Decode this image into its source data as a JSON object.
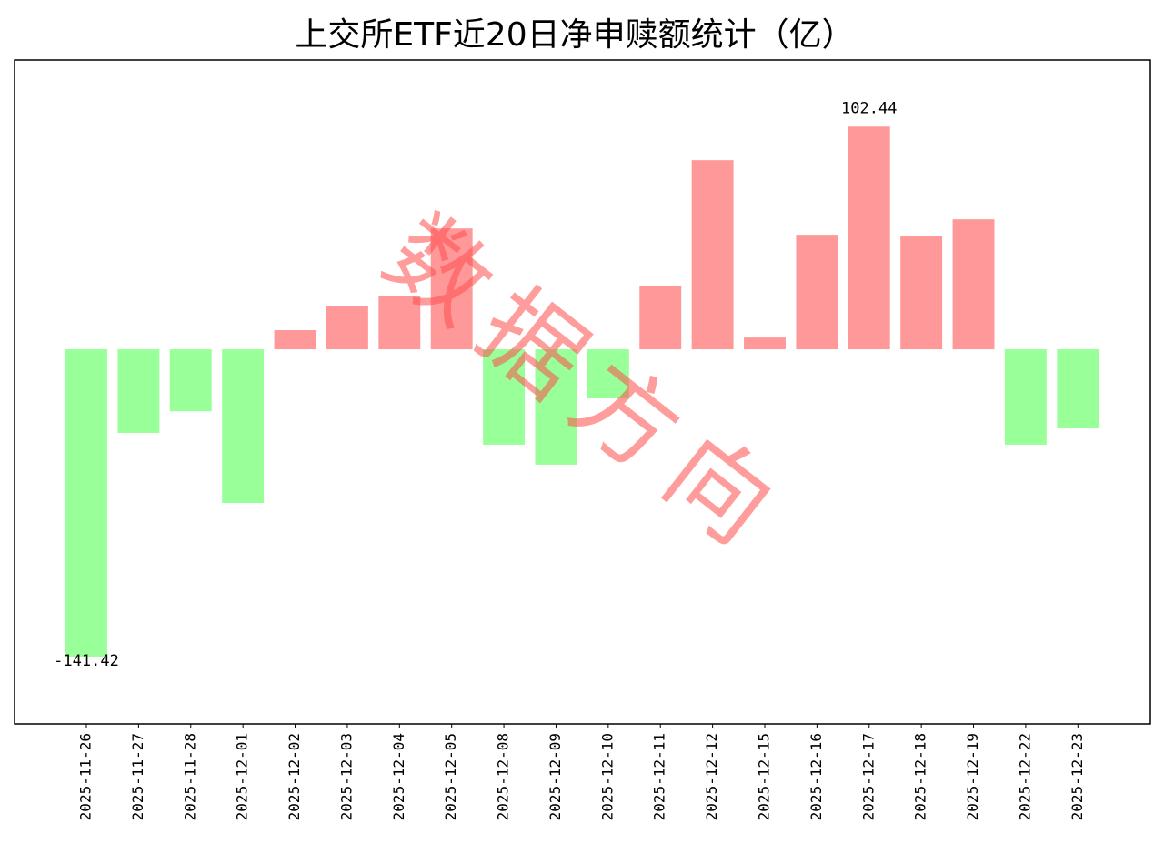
{
  "chart_data": {
    "type": "bar",
    "title": "上交所ETF近20日净申赎额统计（亿）",
    "watermark": "数据方向",
    "categories": [
      "2025-11-26",
      "2025-11-27",
      "2025-11-28",
      "2025-12-01",
      "2025-12-02",
      "2025-12-03",
      "2025-12-04",
      "2025-12-05",
      "2025-12-08",
      "2025-12-09",
      "2025-12-10",
      "2025-12-11",
      "2025-12-12",
      "2025-12-15",
      "2025-12-16",
      "2025-12-17",
      "2025-12-18",
      "2025-12-19",
      "2025-12-22",
      "2025-12-23"
    ],
    "values": [
      -141.42,
      -38.5,
      -28.5,
      -70.7,
      8.8,
      19.7,
      24.3,
      55.6,
      -43.9,
      -53.1,
      -22.6,
      29.3,
      87.0,
      5.4,
      52.7,
      102.44,
      51.9,
      59.8,
      -43.9,
      -36.4
    ],
    "positive_color": "#ff9999",
    "negative_color": "#99ff99",
    "ylim": [
      -172.4,
      133.1
    ]
  }
}
